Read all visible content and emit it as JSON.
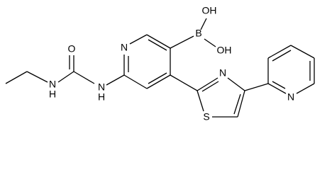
{
  "atoms": [
    {
      "label": "N"
    },
    {
      "label": "H"
    },
    {
      "label": "O"
    },
    {
      "label": "N"
    },
    {
      "label": "H"
    },
    {
      "label": "N"
    },
    {
      "label": "B"
    },
    {
      "label": "OH"
    },
    {
      "label": "OH"
    },
    {
      "label": "N"
    },
    {
      "label": "S"
    },
    {
      "label": "N"
    }
  ]
}
